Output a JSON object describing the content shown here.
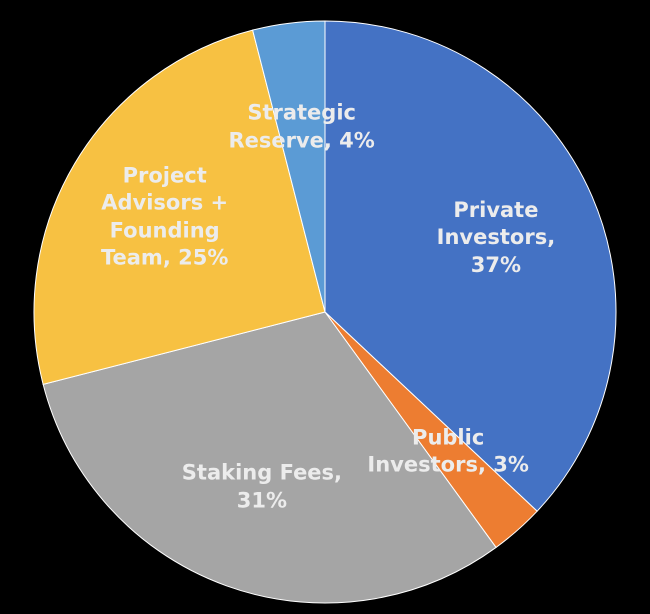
{
  "chart_data": {
    "type": "pie",
    "values": [
      37,
      3,
      31,
      25,
      4
    ],
    "value_labels": [
      "Private Investors, 37%",
      "Public Investors, 3%",
      "Staking Fees, 31%",
      "Project Advisors + Founding Team, 25%",
      "Strategic Reserve, 4%"
    ],
    "colors": [
      "#4472c4",
      "#ed7d31",
      "#a5a5a5",
      "#f7c142",
      "#5b9bd5"
    ]
  }
}
